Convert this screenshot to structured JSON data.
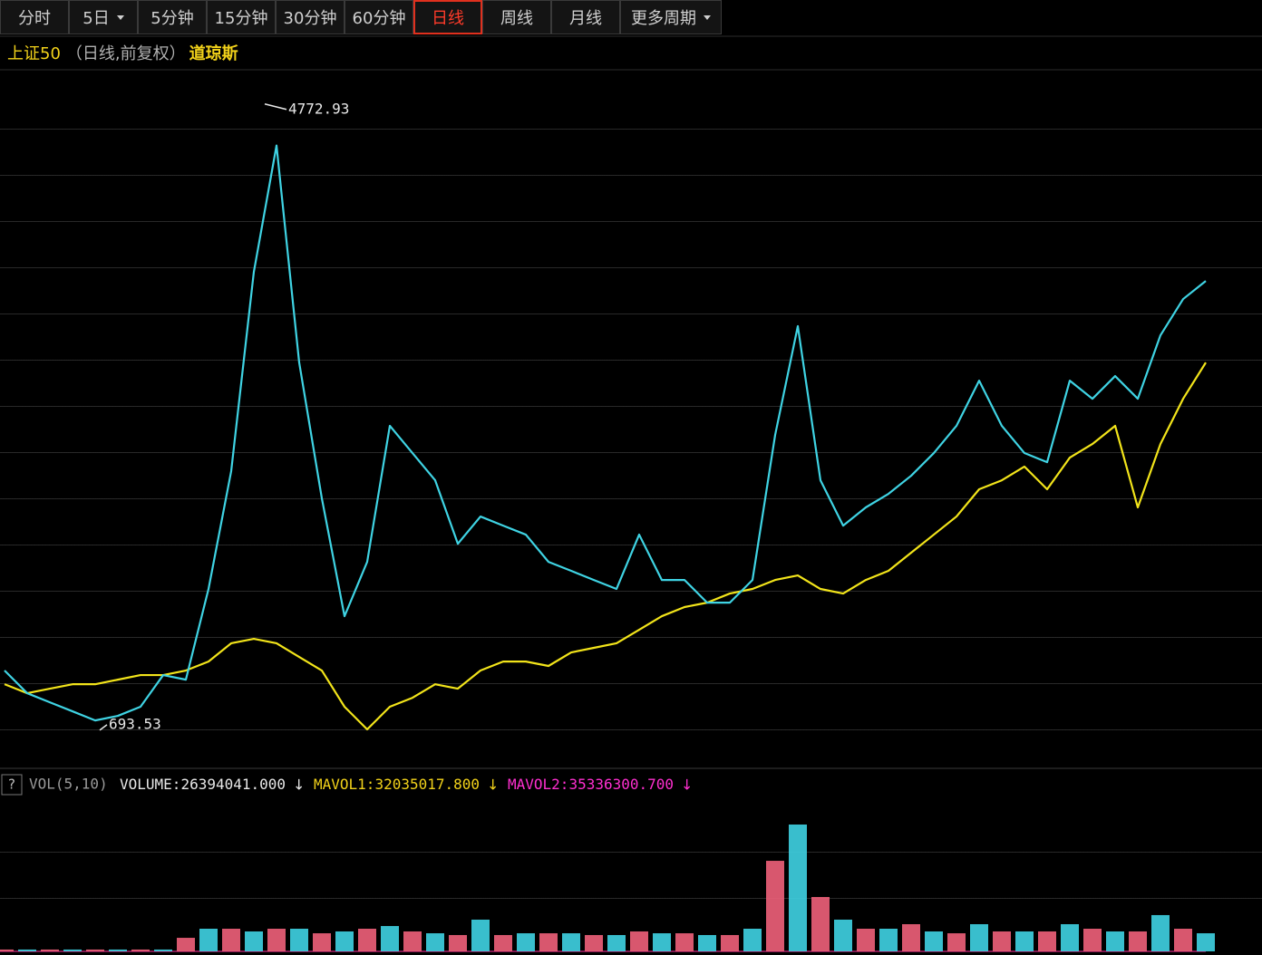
{
  "toolbar": {
    "tabs": [
      "分时",
      "5日",
      "5分钟",
      "15分钟",
      "30分钟",
      "60分钟",
      "日线",
      "周线",
      "月线",
      "更多周期"
    ],
    "active": 6
  },
  "chart_data": [
    {
      "type": "line",
      "subtitle": "（日线,前复权）",
      "series": [
        {
          "name": "上证50",
          "color": "#3fd3e3",
          "values": [
            1050,
            901,
            841,
            782,
            722,
            752,
            812,
            1020,
            990,
            1586,
            2360,
            3670,
            4500,
            3074,
            2181,
            1407,
            1764,
            2658,
            2479,
            2300,
            1883,
            2062,
            2002,
            1943,
            1764,
            1705,
            1645,
            1586,
            1943,
            1645,
            1645,
            1496,
            1496,
            1645,
            2598,
            3313,
            2300,
            2002,
            2122,
            2211,
            2330,
            2479,
            2658,
            2955,
            2658,
            2479,
            2419,
            2955,
            2836,
            2985,
            2836,
            3253,
            3491,
            3610
          ]
        },
        {
          "name": "道琼斯",
          "color": "#f2e41a",
          "values": [
            960,
            901,
            931,
            960,
            960,
            990,
            1020,
            1020,
            1050,
            1109,
            1229,
            1258,
            1229,
            1139,
            1050,
            812,
            663,
            812,
            871,
            960,
            931,
            1050,
            1109,
            1109,
            1080,
            1169,
            1199,
            1229,
            1318,
            1407,
            1467,
            1496,
            1556,
            1586,
            1645,
            1675,
            1586,
            1556,
            1645,
            1705,
            1824,
            1943,
            2062,
            2241,
            2300,
            2390,
            2241,
            2449,
            2539,
            2658,
            2122,
            2539,
            2836,
            3074
          ]
        }
      ],
      "annotations": [
        {
          "value": 4772.93
        },
        {
          "value": 693.53
        }
      ],
      "ylim": [
        425,
        4980
      ]
    },
    {
      "type": "bar",
      "title": "VOL(5,10)",
      "help": "?",
      "down_arrow": "↓",
      "readouts": [
        {
          "name": "VOLUME:",
          "value": {
            "value": 26394041,
            "label": "26394041.000"
          },
          "color": "#e8e8e8"
        },
        {
          "name": "MAVOL1:",
          "value": {
            "value": 32035017.8,
            "label": "32035017.800"
          },
          "color": "#f2d21a"
        },
        {
          "name": "MAVOL2:",
          "value": {
            "value": 35336300.7,
            "label": "35336300.700"
          },
          "color": "#ff2fd0"
        }
      ],
      "series": [
        {
          "color": "#f0607a",
          "values": [
            2400000,
            2400000,
            2400000,
            2400000,
            2400000,
            2400000,
            2400000,
            2400000,
            17600000,
            29400000,
            29400000,
            25900000,
            29400000,
            29400000,
            23500000,
            25900000,
            29400000,
            32900000,
            25900000,
            23500000,
            21200000,
            41200000,
            21200000,
            23500000,
            23500000,
            23500000,
            21200000,
            21200000,
            25900000,
            23500000,
            23500000,
            21200000,
            21200000,
            29400000,
            117600000,
            164700000,
            70600000,
            41200000,
            29400000,
            29400000,
            35300000,
            25900000,
            23500000,
            35300000,
            25900000,
            25900000,
            25900000,
            35300000,
            29400000,
            25900000,
            25900000,
            47100000,
            29400000,
            23500000
          ]
        }
      ],
      "ylim": [
        0,
        200000000
      ]
    }
  ]
}
